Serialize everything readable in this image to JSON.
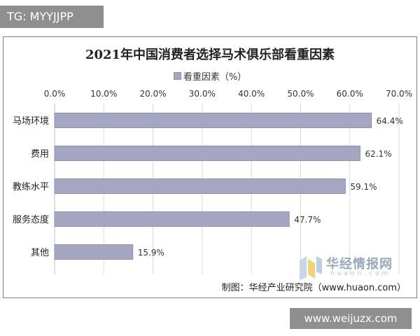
{
  "overlay": {
    "tg_tag": "TG: MYYJJPP",
    "site_tag": "www.weijuzx.com"
  },
  "watermark": {
    "name": "华经情报网",
    "domain": "huaon.com"
  },
  "source_note": "制图：华经产业研究院（www.huaon.com）",
  "colors": {
    "bar_fill": "#a4a6c2",
    "bar_stroke": "#8e91b5",
    "grid": "#d9d9d9"
  },
  "chart_data": {
    "type": "bar",
    "orientation": "horizontal",
    "title": "2021年中国消费者选择马术俱乐部看重因素",
    "legend_label": "看重因素（%）",
    "legend_position": "top",
    "categories": [
      "马场环境",
      "费用",
      "教练水平",
      "服务态度",
      "其他"
    ],
    "series": [
      {
        "name": "看重因素（%）",
        "values": [
          64.4,
          62.1,
          59.1,
          47.7,
          15.9
        ]
      }
    ],
    "value_labels": [
      "64.4%",
      "62.1%",
      "59.1%",
      "47.7%",
      "15.9%"
    ],
    "xlim": [
      0,
      70
    ],
    "x_ticks": [
      0,
      10,
      20,
      30,
      40,
      50,
      60,
      70
    ],
    "x_tick_labels": [
      "0.0%",
      "10.0%",
      "20.0%",
      "30.0%",
      "40.0%",
      "50.0%",
      "60.0%",
      "70.0%"
    ],
    "x_axis_position": "top",
    "grid": true
  }
}
